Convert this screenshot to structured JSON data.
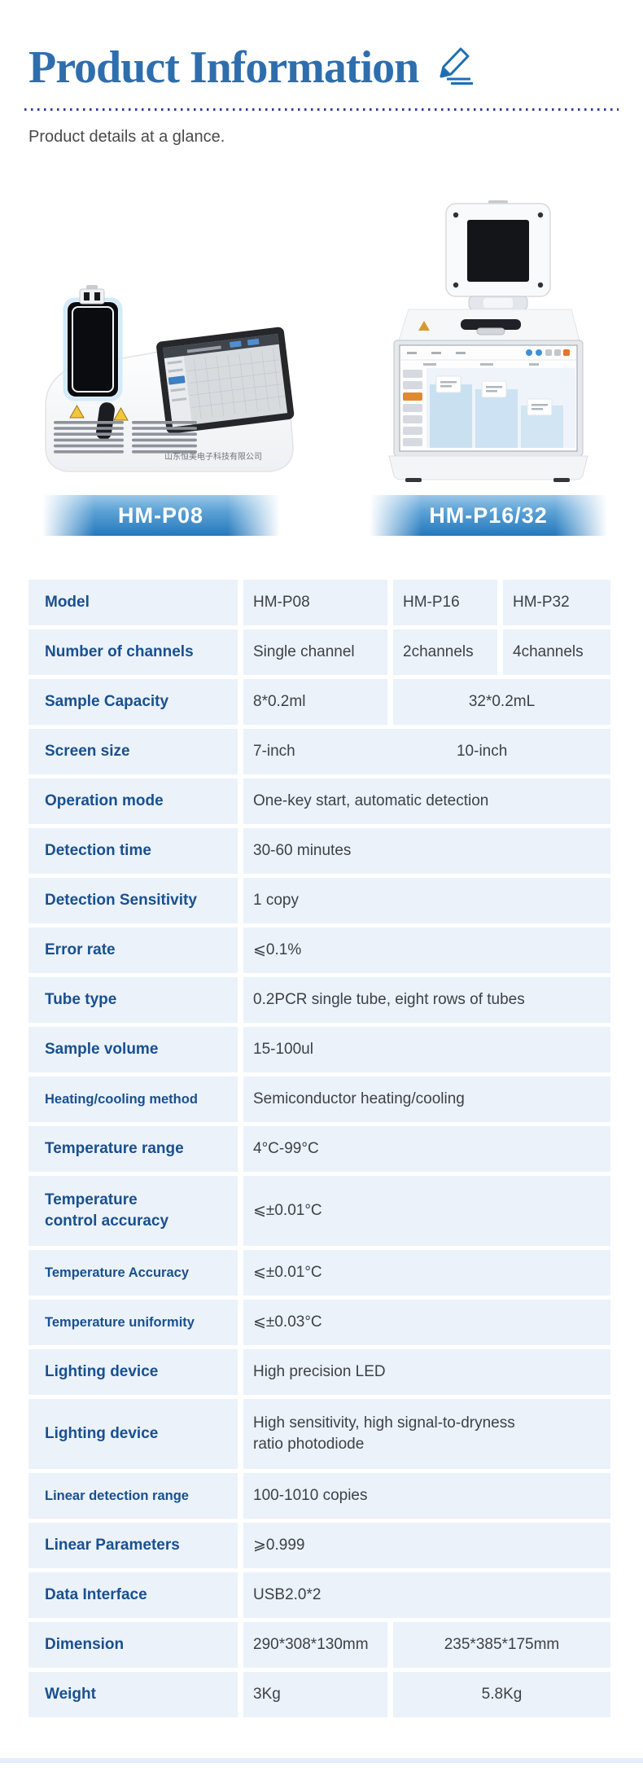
{
  "page": {
    "title": "Product Information",
    "subtitle": "Product details at a glance."
  },
  "icons": {
    "pencil_icon": "pencil-icon"
  },
  "colors": {
    "title_blue": "#2F6EAD",
    "label_blue": "#19508F",
    "value_gray": "#3E4146",
    "cell_bg": "#EBF2FA",
    "banner_blue_bottom": "#2478BC",
    "banner_blue_top": "#9AC6E7",
    "divider_dot_blue": "#3239A0",
    "warning_yellow": "#F3C73C",
    "footer_bar": "#E4EEF9"
  },
  "products": [
    {
      "name": "HM-P08",
      "device_label_text": "山东恒美电子科技有限公司"
    },
    {
      "name": "HM-P16/32"
    }
  ],
  "spec_table": {
    "rows": [
      {
        "label": "Model",
        "cells": [
          {
            "text": "HM-P08",
            "span": 1
          },
          {
            "text": "HM-P16",
            "span": 1
          },
          {
            "text": "HM-P32",
            "span": 1
          }
        ]
      },
      {
        "label": "Number of channels",
        "cells": [
          {
            "text": "Single channel",
            "span": 1
          },
          {
            "text": "2channels",
            "span": 1
          },
          {
            "text": "4channels",
            "span": 1
          }
        ]
      },
      {
        "label": "Sample Capacity",
        "cells": [
          {
            "text": "8*0.2ml",
            "span": 1
          },
          {
            "text": "32*0.2mL",
            "span": 2,
            "align": "center"
          }
        ]
      },
      {
        "label": "Screen size",
        "cells": [
          {
            "text": "7-inch",
            "span": 3,
            "text2": "10-inch"
          }
        ]
      },
      {
        "label": "Operation mode",
        "cells": [
          {
            "text": "One-key start, automatic detection",
            "span": 3
          }
        ]
      },
      {
        "label": "Detection time",
        "cells": [
          {
            "text": "30-60 minutes",
            "span": 3
          }
        ]
      },
      {
        "label": "Detection Sensitivity",
        "cells": [
          {
            "text": "1 copy",
            "span": 3
          }
        ]
      },
      {
        "label": "Error rate",
        "cells": [
          {
            "text": "⩽0.1%",
            "span": 3
          }
        ]
      },
      {
        "label": "Tube type",
        "cells": [
          {
            "text": "0.2PCR single tube, eight rows of tubes",
            "span": 3
          }
        ]
      },
      {
        "label": "Sample volume",
        "cells": [
          {
            "text": "15-100ul",
            "span": 3
          }
        ]
      },
      {
        "label": "Heating/cooling method",
        "small_label": true,
        "cells": [
          {
            "text": "Semiconductor heating/cooling",
            "span": 3
          }
        ]
      },
      {
        "label": "Temperature range",
        "cells": [
          {
            "text": "4°C-99°C",
            "span": 3
          }
        ]
      },
      {
        "label": "Temperature\ncontrol accuracy",
        "cells": [
          {
            "text": "⩽±0.01°C",
            "span": 3
          }
        ]
      },
      {
        "label": "Temperature Accuracy",
        "small_label": true,
        "cells": [
          {
            "text": "⩽±0.01°C",
            "span": 3
          }
        ]
      },
      {
        "label": "Temperature uniformity",
        "small_label": true,
        "cells": [
          {
            "text": "⩽±0.03°C",
            "span": 3
          }
        ]
      },
      {
        "label": "Lighting device",
        "cells": [
          {
            "text": "High precision LED",
            "span": 3
          }
        ]
      },
      {
        "label": "Lighting device",
        "cells": [
          {
            "text": "High sensitivity, high signal-to-dryness\nratio photodiode",
            "span": 3
          }
        ]
      },
      {
        "label": "Linear detection range",
        "small_label": true,
        "cells": [
          {
            "text": "100-1010 copies",
            "span": 3
          }
        ]
      },
      {
        "label": "Linear Parameters",
        "cells": [
          {
            "text": "⩾0.999",
            "span": 3
          }
        ]
      },
      {
        "label": "Data Interface",
        "cells": [
          {
            "text": "USB2.0*2",
            "span": 3
          }
        ]
      },
      {
        "label": "Dimension",
        "cells": [
          {
            "text": "290*308*130mm",
            "span": 1
          },
          {
            "text": "235*385*175mm",
            "span": 2,
            "align": "center"
          }
        ]
      },
      {
        "label": "Weight",
        "cells": [
          {
            "text": "3Kg",
            "span": 1
          },
          {
            "text": "5.8Kg",
            "span": 2,
            "align": "center"
          }
        ]
      }
    ]
  }
}
